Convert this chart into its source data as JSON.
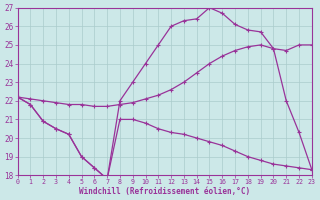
{
  "xlabel": "Windchill (Refroidissement éolien,°C)",
  "background_color": "#cce8e8",
  "grid_color": "#aacccc",
  "line_color": "#993399",
  "xlim": [
    0,
    23
  ],
  "ylim": [
    18,
    27
  ],
  "yticks": [
    18,
    19,
    20,
    21,
    22,
    23,
    24,
    25,
    26,
    27
  ],
  "xticks": [
    0,
    1,
    2,
    3,
    4,
    5,
    6,
    7,
    8,
    9,
    10,
    11,
    12,
    13,
    14,
    15,
    16,
    17,
    18,
    19,
    20,
    21,
    22,
    23
  ],
  "line1_x": [
    0,
    1,
    2,
    3,
    4,
    5,
    6,
    7,
    8,
    9,
    10,
    11,
    12,
    13,
    14,
    15,
    16,
    17,
    18,
    19,
    20,
    21,
    22,
    23
  ],
  "line1_y": [
    22.2,
    21.8,
    20.9,
    20.5,
    20.2,
    19.0,
    18.4,
    17.8,
    21.0,
    21.0,
    20.8,
    20.5,
    20.3,
    20.2,
    20.0,
    19.8,
    19.6,
    19.3,
    19.0,
    18.8,
    18.6,
    18.5,
    18.4,
    18.3
  ],
  "line2_x": [
    0,
    1,
    2,
    3,
    4,
    5,
    6,
    7,
    8,
    9,
    10,
    11,
    12,
    13,
    14,
    15,
    16,
    17,
    18,
    19,
    20,
    21,
    22,
    23
  ],
  "line2_y": [
    22.2,
    21.8,
    20.9,
    20.5,
    20.2,
    19.0,
    18.4,
    17.8,
    22.0,
    23.0,
    24.0,
    25.0,
    26.0,
    26.3,
    26.4,
    27.0,
    26.7,
    26.1,
    25.8,
    25.7,
    24.8,
    22.0,
    20.3,
    18.3
  ],
  "line3_x": [
    0,
    1,
    2,
    3,
    4,
    5,
    6,
    7,
    8,
    9,
    10,
    11,
    12,
    13,
    14,
    15,
    16,
    17,
    18,
    19,
    20,
    21,
    22,
    23
  ],
  "line3_y": [
    22.2,
    22.1,
    22.0,
    21.9,
    21.8,
    21.8,
    21.7,
    21.7,
    21.8,
    21.9,
    22.1,
    22.3,
    22.6,
    23.0,
    23.5,
    24.0,
    24.4,
    24.7,
    24.9,
    25.0,
    24.8,
    24.7,
    25.0,
    25.0
  ]
}
